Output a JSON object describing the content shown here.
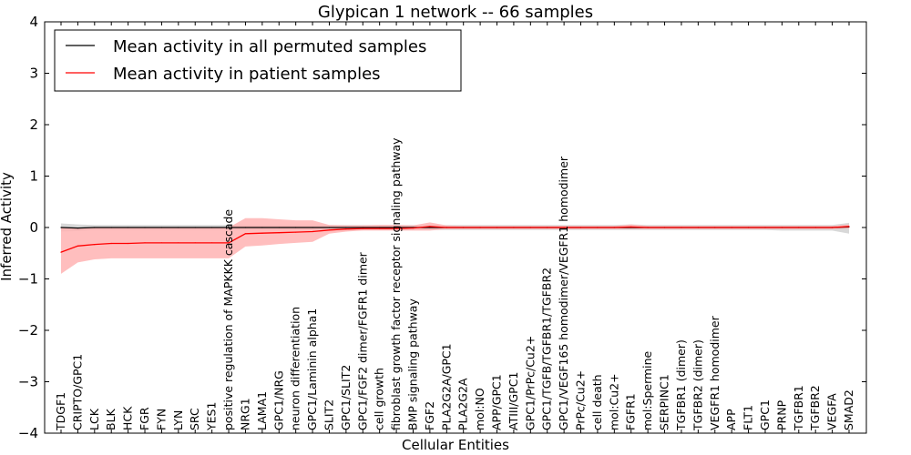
{
  "chart_data": {
    "type": "line",
    "title": "Glypican 1 network -- 66 samples",
    "xlabel": "Cellular Entities",
    "ylabel": "Inferred Activity",
    "ylim": [
      -4,
      4
    ],
    "yticks": [
      -4,
      -3,
      -2,
      -1,
      0,
      1,
      2,
      3,
      4
    ],
    "legend_position": "top-left",
    "grid": false,
    "categories": [
      "TDGF1",
      "CRIPTO/GPC1",
      "LCK",
      "BLK",
      "HCK",
      "FGR",
      "FYN",
      "LYN",
      "SRC",
      "YES1",
      "positive regulation of MAPKKK cascade",
      "NRG1",
      "LAMA1",
      "GPC1/NRG",
      "neuron differentiation",
      "GPC1/Laminin alpha1",
      "SLIT2",
      "GPC1/SLIT2",
      "GPC1/FGF2 dimer/FGFR1 dimer",
      "cell growth",
      "fibroblast growth factor receptor signaling pathway",
      "BMP signaling pathway",
      "FGF2",
      "PLA2G2A/GPC1",
      "PLA2G2A",
      "mol:NO",
      "APP/GPC1",
      "ATIII/GPC1",
      "GPC1/PrPc/Cu2+",
      "GPC1/TGFB/TGFBR1/TGFBR2",
      "GPC1/VEGF165 homodimer/VEGFR1 homodimer",
      "PrPc/Cu2+",
      "cell death",
      "mol:Cu2+",
      "FGFR1",
      "mol:Spermine",
      "SERPINC1",
      "TGFBR1 (dimer)",
      "TGFBR2 (dimer)",
      "VEGFR1 homodimer",
      "APP",
      "FLT1",
      "GPC1",
      "PRNP",
      "TGFBR1",
      "TGFBR2",
      "VEGFA",
      "SMAD2"
    ],
    "series": [
      {
        "name": "Mean activity in all permuted samples",
        "color": "#000000",
        "band_color": "#c8c8c8",
        "values": [
          0,
          -0.01,
          0,
          0,
          0,
          0,
          0,
          0,
          0,
          0,
          0,
          0,
          0,
          0,
          0,
          0,
          0,
          0,
          0,
          0,
          0,
          0,
          0,
          0,
          0,
          0,
          0,
          0,
          0,
          0,
          0,
          0,
          0,
          0,
          0,
          0,
          0,
          0,
          0,
          0,
          0,
          0,
          0,
          0,
          0,
          0,
          0,
          0.01
        ],
        "upper": [
          0.08,
          0.06,
          0.05,
          0.05,
          0.05,
          0.05,
          0.05,
          0.05,
          0.05,
          0.05,
          0.05,
          0.05,
          0.05,
          0.05,
          0.05,
          0.05,
          0.05,
          0.05,
          0.05,
          0.05,
          0.05,
          0.05,
          0.05,
          0.05,
          0.05,
          0.05,
          0.05,
          0.05,
          0.05,
          0.05,
          0.05,
          0.05,
          0.05,
          0.05,
          0.06,
          0.05,
          0.05,
          0.05,
          0.05,
          0.05,
          0.05,
          0.05,
          0.05,
          0.05,
          0.05,
          0.05,
          0.05,
          0.09
        ],
        "lower": [
          -0.08,
          -0.07,
          -0.05,
          -0.05,
          -0.05,
          -0.05,
          -0.05,
          -0.05,
          -0.05,
          -0.05,
          -0.05,
          -0.05,
          -0.05,
          -0.05,
          -0.05,
          -0.05,
          -0.05,
          -0.05,
          -0.05,
          -0.05,
          -0.05,
          -0.05,
          -0.05,
          -0.05,
          -0.05,
          -0.05,
          -0.05,
          -0.05,
          -0.05,
          -0.05,
          -0.05,
          -0.05,
          -0.05,
          -0.05,
          -0.05,
          -0.05,
          -0.05,
          -0.05,
          -0.05,
          -0.05,
          -0.05,
          -0.05,
          -0.05,
          -0.06,
          -0.06,
          -0.06,
          -0.06,
          -0.12
        ]
      },
      {
        "name": "Mean activity in patient samples",
        "color": "#ff0000",
        "band_color": "#ffb3b3",
        "values": [
          -0.48,
          -0.36,
          -0.33,
          -0.31,
          -0.31,
          -0.3,
          -0.3,
          -0.3,
          -0.3,
          -0.3,
          -0.3,
          -0.12,
          -0.11,
          -0.1,
          -0.09,
          -0.08,
          -0.05,
          -0.03,
          -0.02,
          -0.02,
          -0.02,
          -0.01,
          0.02,
          0,
          0,
          0,
          0,
          0,
          0,
          0,
          0,
          0,
          0,
          0,
          0.01,
          0,
          0,
          0,
          0,
          0,
          0,
          0,
          0,
          0,
          0,
          0,
          0,
          0.02
        ],
        "upper": [
          0,
          0,
          0,
          0,
          0,
          0,
          0,
          0,
          0,
          0,
          0,
          0.18,
          0.18,
          0.16,
          0.14,
          0.14,
          0.05,
          0.04,
          0.04,
          0.05,
          0.05,
          0.04,
          0.1,
          0.04,
          0.03,
          0.03,
          0.03,
          0.03,
          0.03,
          0.03,
          0.03,
          0.03,
          0.03,
          0.03,
          0.06,
          0.03,
          0.03,
          0.03,
          0.03,
          0.03,
          0.03,
          0.03,
          0.03,
          0.03,
          0.03,
          0.03,
          0.03,
          0.06
        ],
        "lower": [
          -0.9,
          -0.68,
          -0.62,
          -0.6,
          -0.6,
          -0.6,
          -0.6,
          -0.6,
          -0.6,
          -0.6,
          -0.6,
          -0.37,
          -0.35,
          -0.32,
          -0.3,
          -0.28,
          -0.12,
          -0.08,
          -0.06,
          -0.06,
          -0.06,
          -0.06,
          -0.06,
          -0.03,
          -0.03,
          -0.03,
          -0.03,
          -0.03,
          -0.03,
          -0.03,
          -0.03,
          -0.03,
          -0.03,
          -0.03,
          -0.03,
          -0.03,
          -0.03,
          -0.03,
          -0.03,
          -0.03,
          -0.03,
          -0.03,
          -0.03,
          -0.03,
          -0.03,
          -0.03,
          -0.03,
          -0.02
        ]
      }
    ]
  }
}
